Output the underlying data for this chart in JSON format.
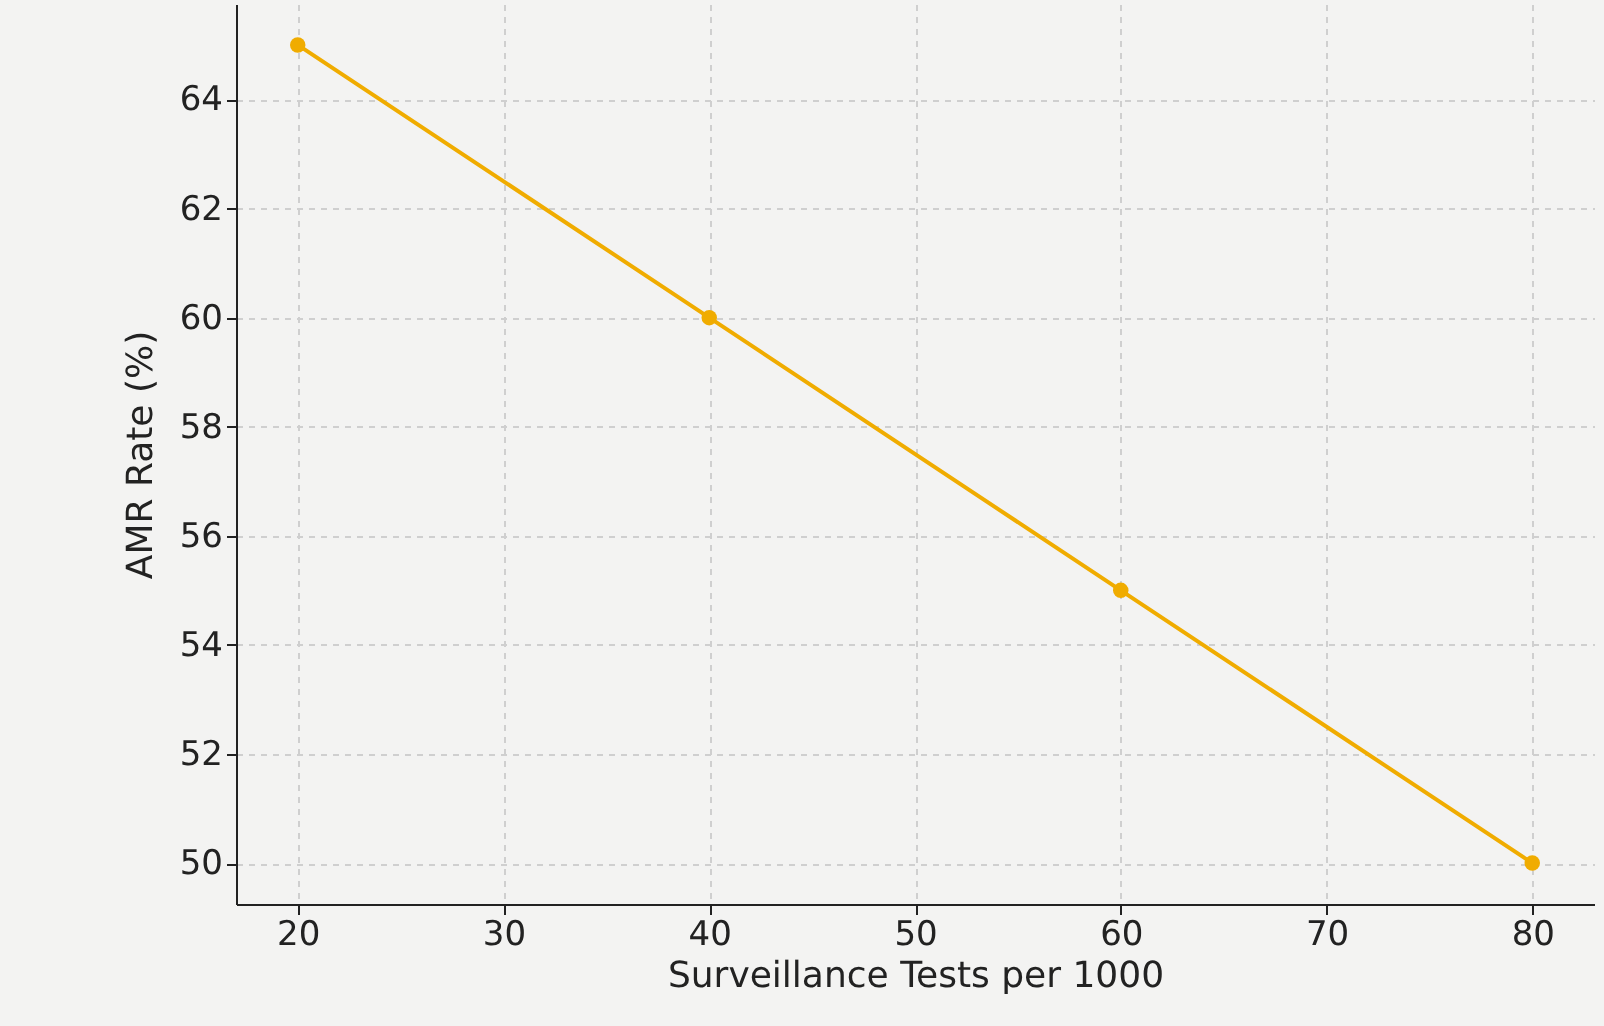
{
  "chart_data": {
    "type": "line",
    "xlabel": "Surveillance Tests per 1000",
    "ylabel": "AMR Rate (%)",
    "x": [
      20,
      40,
      60,
      80
    ],
    "series": [
      {
        "color": "#f0ac00",
        "values": [
          65,
          60,
          55,
          50
        ]
      }
    ],
    "xlim": [
      17,
      83
    ],
    "xticks": [
      20,
      30,
      40,
      50,
      60,
      70,
      80
    ],
    "ylim": [
      49.25,
      65.75
    ],
    "yticks": [
      50,
      52,
      54,
      56,
      58,
      60,
      62,
      64
    ],
    "grid": true,
    "marker": "circle",
    "line_style": "solid"
  }
}
